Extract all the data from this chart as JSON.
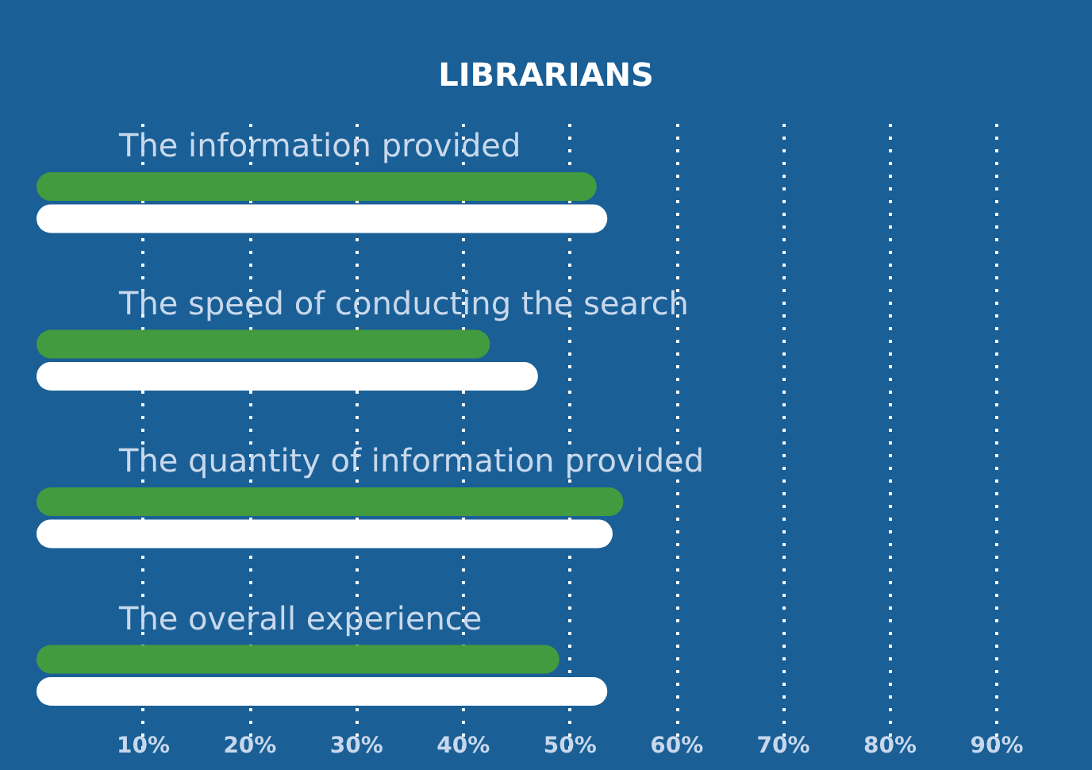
{
  "chart_data": {
    "type": "bar",
    "orientation": "horizontal",
    "title": "LIBRARIANS",
    "categories": [
      "The information provided",
      "The speed of conducting the search",
      "The quantity of information provided",
      "The overall experience"
    ],
    "series": [
      {
        "color": "#429b3f",
        "values": [
          52.5,
          42.5,
          55,
          49
        ]
      },
      {
        "color": "#ffffff",
        "values": [
          53.5,
          47,
          54,
          53.5
        ]
      }
    ],
    "xlim": [
      0,
      90
    ],
    "xticks": [
      {
        "value": 10,
        "label": "10%"
      },
      {
        "value": 20,
        "label": "20%"
      },
      {
        "value": 30,
        "label": "30%"
      },
      {
        "value": 40,
        "label": "40%"
      },
      {
        "value": 50,
        "label": "50%"
      },
      {
        "value": 60,
        "label": "60%"
      },
      {
        "value": 70,
        "label": "70%"
      },
      {
        "value": 80,
        "label": "80%"
      },
      {
        "value": 90,
        "label": "90%"
      }
    ],
    "grid": "x"
  }
}
